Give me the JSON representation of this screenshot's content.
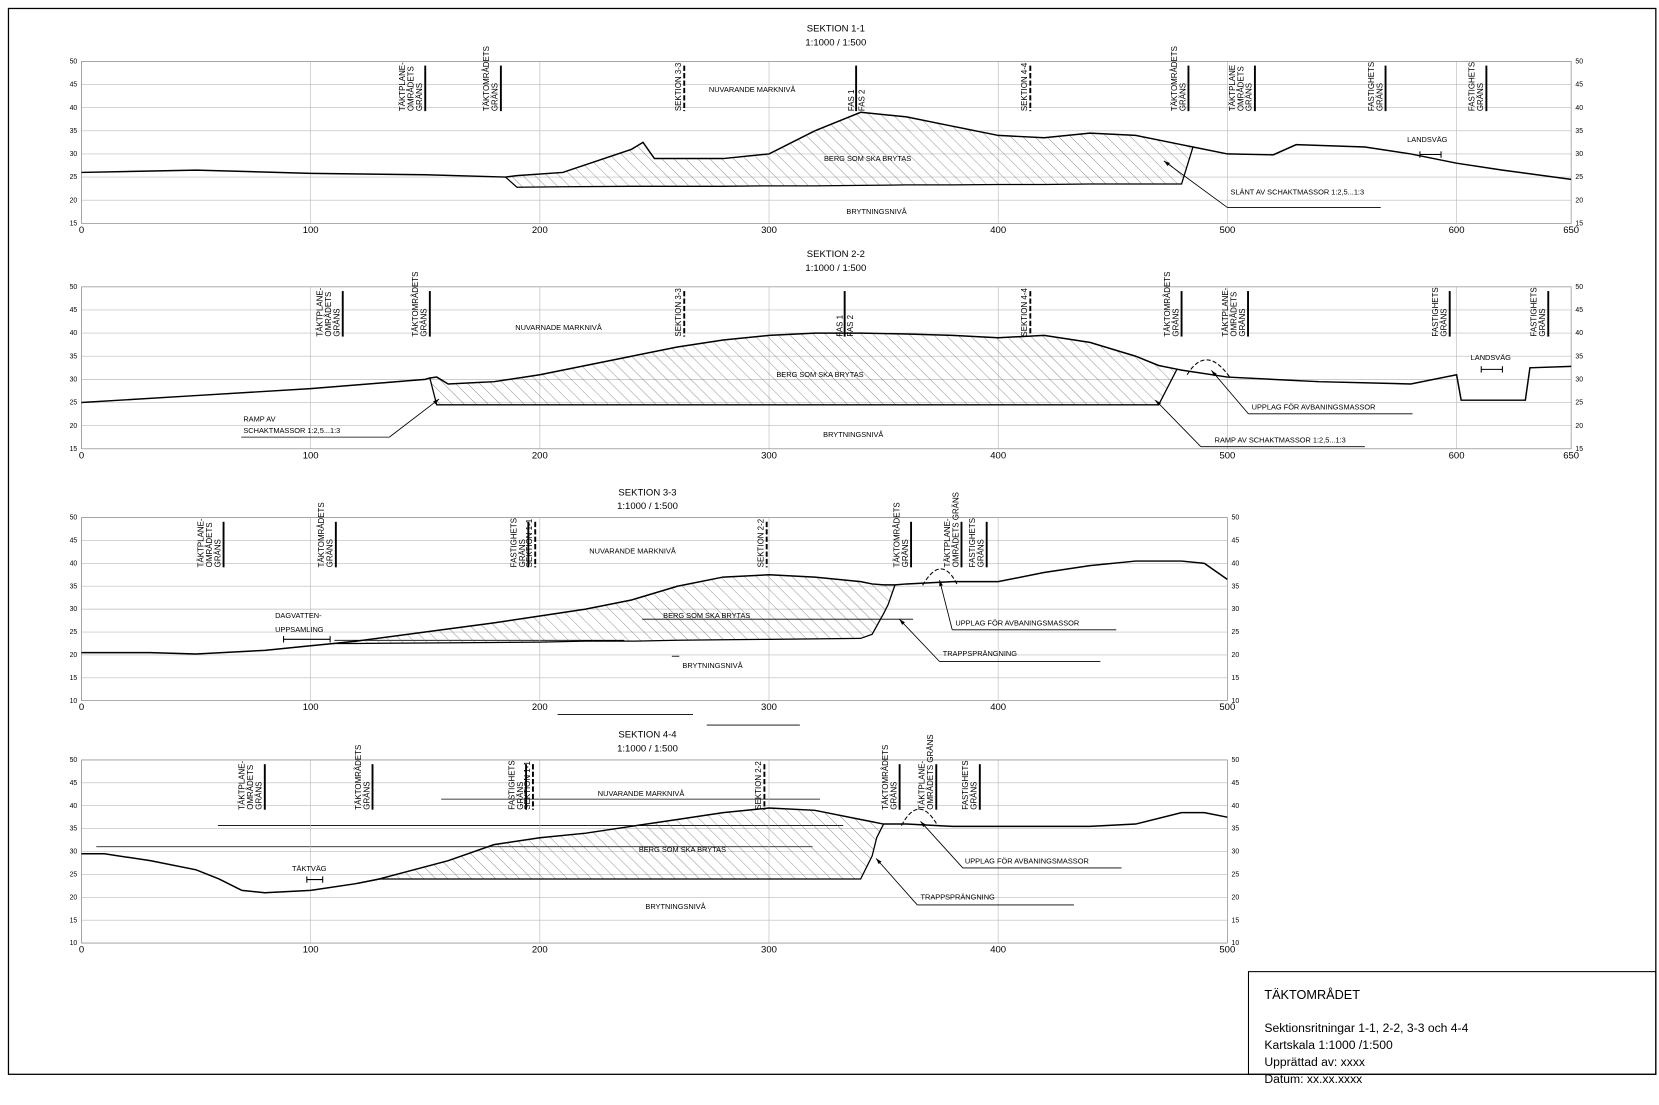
{
  "chart_data": [
    {
      "type": "line",
      "title": "SEKTION  1-1",
      "subtitle": "1:1000  / 1:500",
      "xlim": [
        0,
        650
      ],
      "xticks": [
        0,
        100,
        200,
        300,
        400,
        500,
        600,
        650
      ],
      "ylim": [
        15,
        50
      ],
      "yticks": [
        15,
        20,
        25,
        30,
        35,
        40,
        45,
        50
      ],
      "x": [
        0,
        50,
        100,
        150,
        185,
        190,
        210,
        240,
        245,
        250,
        280,
        300,
        320,
        340,
        360,
        380,
        400,
        420,
        440,
        460,
        480,
        485,
        500,
        520,
        530,
        560,
        580,
        600,
        620,
        650
      ],
      "series": [
        {
          "name": "NUVARANDE MARKNIVÅ",
          "color": "#000000",
          "values": [
            26,
            26.5,
            25.8,
            25.5,
            25,
            25.3,
            26,
            31,
            32.5,
            29,
            29,
            30,
            35,
            39,
            38,
            36,
            34,
            33.5,
            34.5,
            34,
            32,
            31.5,
            30,
            29.8,
            32,
            31.5,
            30,
            28,
            26.5,
            24.5
          ]
        },
        {
          "name": "BRYTNINGSNIVÅ",
          "color": "#000000",
          "values": [
            null,
            null,
            null,
            null,
            25,
            22.8,
            22.9,
            23,
            23,
            23,
            23,
            23.1,
            23.1,
            23.2,
            23.3,
            23.3,
            23.4,
            23.4,
            23.5,
            23.5,
            23.5,
            31.5,
            null,
            null,
            null,
            null,
            null,
            null,
            null,
            null
          ]
        }
      ],
      "markers": [
        {
          "lines": [
            "TÄKTPLANE-",
            "OMRÅDETS",
            "GRÄNS"
          ],
          "x": 150
        },
        {
          "lines": [
            "TÄKTOMRÅDETS",
            "GRÄNS"
          ],
          "x": 183
        },
        {
          "lines": [
            "SEKTION 3-3"
          ],
          "x": 263,
          "dashed": true
        },
        {
          "lines": [
            "FAS 1",
            "FAS 2"
          ],
          "x": 338,
          "split": true
        },
        {
          "lines": [
            "SEKTION 4-4"
          ],
          "x": 414,
          "dashed": true
        },
        {
          "lines": [
            "TÄKTOMRÅDETS",
            "GRÄNS"
          ],
          "x": 483
        },
        {
          "lines": [
            "TÄKTPLANE",
            "OMRÅDETS",
            "GRÄNS"
          ],
          "x": 512
        },
        {
          "lines": [
            "FASTIGHETS",
            "GRÄNS"
          ],
          "x": 569
        },
        {
          "lines": [
            "FASTIGHETS",
            "GRÄNS"
          ],
          "x": 613
        }
      ],
      "annotations": [
        "BERG SOM SKA BRYTAS",
        "SLÄNT AV SCHAKTMASSOR 1:2,5...1:3",
        "LANDSVÄG"
      ]
    },
    {
      "type": "line",
      "title": "SEKTION  2-2",
      "subtitle": "1:1000  / 1:500",
      "xlim": [
        0,
        650
      ],
      "xticks": [
        0,
        100,
        200,
        300,
        400,
        500,
        600,
        650
      ],
      "ylim": [
        15,
        50
      ],
      "yticks": [
        15,
        20,
        25,
        30,
        35,
        40,
        45,
        50
      ],
      "x": [
        0,
        50,
        100,
        150,
        152,
        155,
        160,
        180,
        200,
        220,
        240,
        260,
        280,
        300,
        320,
        340,
        360,
        380,
        400,
        420,
        440,
        460,
        470,
        478,
        480,
        500,
        540,
        580,
        600,
        602,
        630,
        632,
        650
      ],
      "series": [
        {
          "name": "NUVARNADE MARKNIVÅ",
          "color": "#000000",
          "values": [
            25,
            26.5,
            28,
            30,
            30.3,
            30.5,
            29,
            29.5,
            31,
            33,
            35,
            37,
            38.5,
            39.5,
            40,
            40,
            39.8,
            39.5,
            39,
            39.5,
            38,
            35,
            33,
            32.2,
            32,
            30.5,
            29.5,
            29,
            31,
            25.5,
            25.5,
            32.5,
            32.8
          ]
        },
        {
          "name": "BRYTNINGSNIVÅ",
          "color": "#000000",
          "values": [
            null,
            null,
            null,
            null,
            30.3,
            24.5,
            24.5,
            24.5,
            24.5,
            24.5,
            24.5,
            24.5,
            24.5,
            24.5,
            24.5,
            24.5,
            24.5,
            24.5,
            24.5,
            24.5,
            24.5,
            24.5,
            24.5,
            32.2,
            null,
            null,
            null,
            null,
            null,
            null,
            null,
            null,
            null
          ]
        }
      ],
      "markers": [
        {
          "lines": [
            "TÄKTPLANE-",
            "OMRÅDETS",
            "GRÄNS"
          ],
          "x": 114
        },
        {
          "lines": [
            "TÄKTOMRÅDETS",
            "GRÄNS"
          ],
          "x": 152
        },
        {
          "lines": [
            "SEKTION 3-3"
          ],
          "x": 263,
          "dashed": true
        },
        {
          "lines": [
            "FAS 1",
            "FAS 2"
          ],
          "x": 333,
          "split": true
        },
        {
          "lines": [
            "SEKTION 4-4"
          ],
          "x": 414,
          "dashed": true
        },
        {
          "lines": [
            "TÄKTOMRÅDETS",
            "GRÄNS"
          ],
          "x": 480
        },
        {
          "lines": [
            "TÄKTPLANE-",
            "OMRÅDETS",
            "GRÄNS"
          ],
          "x": 509
        },
        {
          "lines": [
            "FASTIGHETS",
            "GRÄNS"
          ],
          "x": 597
        },
        {
          "lines": [
            "FASTIGHETS",
            "GRÄNS"
          ],
          "x": 640
        }
      ],
      "annotations": [
        "BERG SOM SKA BRYTAS",
        "RAMP AV",
        "SCHAKTMASSOR 1:2,5...1:3",
        "RAMP AV SCHAKTMASSOR 1:2,5...1:3",
        "UPPLAG FÖR AVBANINGSMASSOR",
        "LANDSVÄG"
      ]
    },
    {
      "type": "line",
      "title": "SEKTION   3-3",
      "subtitle": "1:1000  / 1:500",
      "xlim": [
        0,
        500
      ],
      "xticks": [
        0,
        100,
        200,
        300,
        400,
        500
      ],
      "ylim": [
        10,
        50
      ],
      "yticks": [
        10,
        15,
        20,
        25,
        30,
        35,
        40,
        45,
        50
      ],
      "x": [
        0,
        30,
        50,
        80,
        100,
        110,
        120,
        150,
        180,
        200,
        220,
        240,
        260,
        280,
        300,
        320,
        340,
        345,
        350,
        352,
        355,
        360,
        380,
        400,
        420,
        440,
        460,
        480,
        490,
        500
      ],
      "series": [
        {
          "name": "NUVARANDE MARKNIVÅ",
          "color": "#000000",
          "values": [
            20.5,
            20.5,
            20.2,
            21,
            22,
            22.5,
            23,
            25,
            27,
            28.5,
            30,
            32,
            35,
            37,
            37.5,
            37,
            36,
            35.5,
            35.3,
            35.3,
            35.3,
            35.5,
            36,
            36,
            38,
            39.5,
            40.5,
            40.5,
            40,
            36.5
          ]
        },
        {
          "name": "BRYTNINGSNIVÅ",
          "color": "#000000",
          "values": [
            null,
            null,
            null,
            null,
            null,
            22.5,
            22.5,
            22.6,
            22.7,
            22.8,
            23,
            23,
            23.2,
            23.3,
            23.4,
            23.5,
            23.6,
            24.5,
            29,
            31,
            35.3,
            null,
            null,
            null,
            null,
            null,
            null,
            null,
            null,
            null
          ]
        }
      ],
      "markers": [
        {
          "lines": [
            "TÄKTPLANE-",
            "OMRÅDETS",
            "GRÄNS"
          ],
          "x": 62
        },
        {
          "lines": [
            "TÄKTOMRÅDETS",
            "GRÄNS"
          ],
          "x": 111
        },
        {
          "lines": [
            "FASTIGHETS",
            "GRÄNS"
          ],
          "x": 195
        },
        {
          "lines": [
            "SEKTION 1-1"
          ],
          "x": 198,
          "dashed": true
        },
        {
          "lines": [
            "SEKTION 2-2"
          ],
          "x": 299,
          "dashed": true
        },
        {
          "lines": [
            "TÄKTOMRÅDETS",
            "GRÄNS"
          ],
          "x": 362
        },
        {
          "lines": [
            "TÄKTPLANE-",
            "OMRÅDETS GRÄNS"
          ],
          "x": 384
        },
        {
          "lines": [
            "FASTIGHETS",
            "GRÄNS"
          ],
          "x": 395
        }
      ],
      "annotations": [
        "BERG SOM SKA BRYTAS",
        "DAGVATTEN-",
        "UPPSAMLING",
        "UPPLAG FÖR AVBANINGSMASSOR",
        "TRAPPSPRÄNGNING"
      ]
    },
    {
      "type": "line",
      "title": "SEKTION   4-4",
      "subtitle": "1:1000  / 1:500",
      "xlim": [
        0,
        500
      ],
      "xticks": [
        0,
        100,
        200,
        300,
        400,
        500
      ],
      "ylim": [
        10,
        50
      ],
      "yticks": [
        10,
        15,
        20,
        25,
        30,
        35,
        40,
        45,
        50
      ],
      "x": [
        0,
        10,
        30,
        50,
        60,
        70,
        80,
        100,
        120,
        130,
        160,
        180,
        200,
        220,
        240,
        260,
        280,
        300,
        320,
        340,
        345,
        347,
        350,
        360,
        380,
        400,
        440,
        460,
        480,
        490,
        500
      ],
      "series": [
        {
          "name": "NUVARANDE MARKNIVÅ",
          "color": "#000000",
          "values": [
            29.5,
            29.5,
            28,
            26,
            24,
            21.5,
            21,
            21.5,
            23,
            24,
            28,
            31.5,
            33,
            34,
            35.5,
            37,
            38.5,
            39.5,
            39,
            37,
            36.5,
            36.3,
            36,
            36,
            35.5,
            35.5,
            35.5,
            36,
            38.5,
            38.5,
            37.5
          ]
        },
        {
          "name": "BRYTNINGSNIVÅ",
          "color": "#000000",
          "values": [
            null,
            null,
            null,
            null,
            null,
            null,
            null,
            null,
            23,
            24,
            24,
            24,
            24,
            24,
            24,
            24,
            24,
            24,
            24,
            24,
            29,
            33,
            36,
            null,
            null,
            null,
            null,
            null,
            null,
            null,
            null
          ]
        }
      ],
      "markers": [
        {
          "lines": [
            "TÄKTPLANE-",
            "OMRÅDETS",
            "GRÄNS"
          ],
          "x": 80
        },
        {
          "lines": [
            "TÄKTOMRÅDETS",
            "GRÄNS"
          ],
          "x": 127
        },
        {
          "lines": [
            "FASTIGHETS",
            "GRÄNS"
          ],
          "x": 194
        },
        {
          "lines": [
            "SEKTION 1-1"
          ],
          "x": 197,
          "dashed": true
        },
        {
          "lines": [
            "SEKTION 2-2"
          ],
          "x": 298,
          "dashed": true
        },
        {
          "lines": [
            "TÄKTOMRÅDETS",
            "GRÄNS"
          ],
          "x": 357
        },
        {
          "lines": [
            "TÄKTPLANE-",
            "OMRÅDETS GRÄNS"
          ],
          "x": 373
        },
        {
          "lines": [
            "FASTIGHETS",
            "GRÄNS"
          ],
          "x": 392
        }
      ],
      "annotations": [
        "BERG SOM SKA BRYTAS",
        "TÄKTVÄG",
        "UPPLAG FÖR AVBANINGSMASSOR",
        "TRAPPSPRÄNGNING"
      ]
    }
  ],
  "title_block": {
    "title": "TÄKTOMRÅDET",
    "lines": [
      "Sektionsritningar 1-1, 2-2, 3-3 och 4-4",
      "Kartskala 1:1000 /1:500",
      "Upprättad av: xxxx",
      "Datum: xx.xx.xxxx"
    ]
  }
}
